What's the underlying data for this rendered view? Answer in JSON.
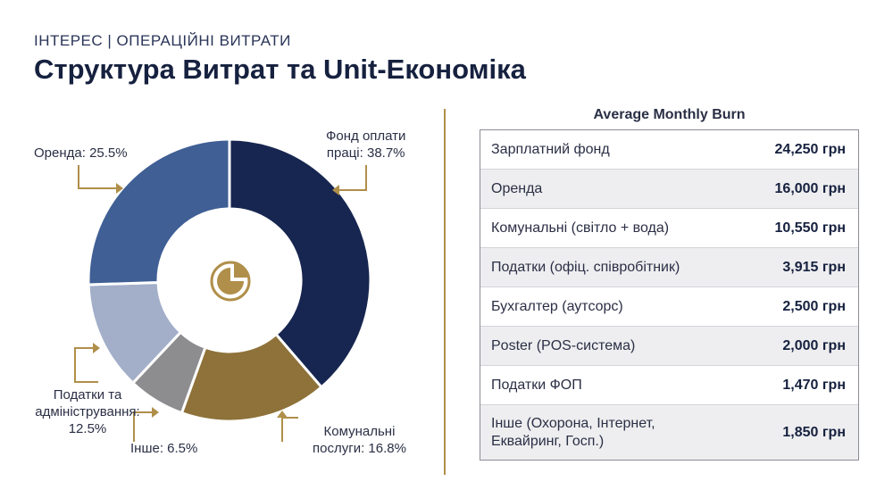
{
  "header": {
    "eyebrow": "ІНТЕРЕС | ОПЕРАЦІЙНІ ВИТРАТИ",
    "title": "Структура Витрат та Unit-Економіка"
  },
  "chart_data": {
    "type": "pie",
    "variant": "donut",
    "slices": [
      {
        "label": "Фонд оплати праці",
        "value": 38.7,
        "color": "#172650"
      },
      {
        "label": "Комунальні послуги",
        "value": 16.8,
        "color": "#8e7239"
      },
      {
        "label": "Інше",
        "value": 6.5,
        "color": "#8d8d90"
      },
      {
        "label": "Податки та адміністрування",
        "value": 12.5,
        "color": "#a3afc9"
      },
      {
        "label": "Оренда",
        "value": 25.5,
        "color": "#3f5f95"
      }
    ],
    "slice_labels": {
      "payroll": [
        "Фонд оплати",
        "праці: 38.7%"
      ],
      "utilities": [
        "Комунальні",
        "послуги: 16.8%"
      ],
      "other": [
        "Інше: 6.5%"
      ],
      "taxes": [
        "Податки та",
        "адміністрування:",
        "12.5%"
      ],
      "rent": [
        "Оренда: 25.5%"
      ]
    },
    "center_icon": "pie-chart-icon",
    "accent_color": "#b08f4a"
  },
  "burn_table": {
    "title": "Average Monthly Burn",
    "rows": [
      {
        "name": "Зарплатний фонд",
        "value": "24,250 грн"
      },
      {
        "name": "Оренда",
        "value": "16,000 грн"
      },
      {
        "name": "Комунальні (світло + вода)",
        "value": "10,550 грн"
      },
      {
        "name": "Податки (офіц. співробітник)",
        "value": "3,915 грн"
      },
      {
        "name": "Бухгалтер (аутсорс)",
        "value": "2,500 грн"
      },
      {
        "name": "Poster (POS-система)",
        "value": "2,000 грн"
      },
      {
        "name": "Податки ФОП",
        "value": "1,470 грн"
      },
      {
        "name": "Інше (Охорона, Інтернет, Еквайринг, Госп.)",
        "value": "1,850 грн"
      }
    ]
  }
}
